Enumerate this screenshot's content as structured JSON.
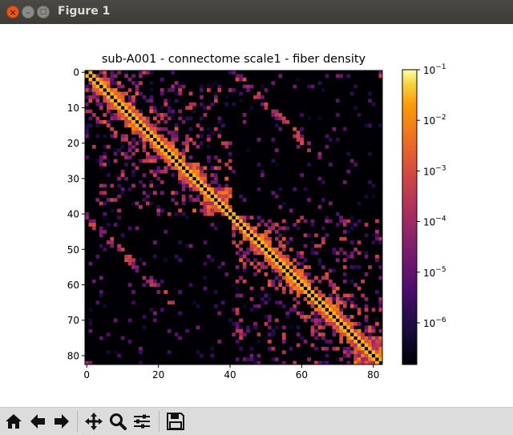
{
  "window": {
    "title": "Figure 1",
    "close_glyph": "×",
    "min_glyph": "–",
    "max_glyph": "□"
  },
  "toolbar": {
    "buttons": [
      {
        "name": "home-button",
        "icon": "home-icon"
      },
      {
        "name": "back-button",
        "icon": "arrow-left-icon"
      },
      {
        "name": "forward-button",
        "icon": "arrow-right-icon"
      },
      {
        "name": "pan-button",
        "icon": "move-icon"
      },
      {
        "name": "zoom-button",
        "icon": "zoom-icon"
      },
      {
        "name": "configure-subplots-button",
        "icon": "sliders-icon"
      },
      {
        "name": "save-button",
        "icon": "save-icon"
      }
    ]
  },
  "chart_data": {
    "type": "heatmap",
    "title": "sub-A001 - connectome scale1 - fiber density",
    "n": 83,
    "x_ticks": [
      0,
      20,
      40,
      60,
      80
    ],
    "y_ticks": [
      0,
      10,
      20,
      30,
      40,
      50,
      60,
      70,
      80
    ],
    "colorbar": {
      "scale": "log",
      "colormap": "inferno",
      "vmin": 1.5e-07,
      "vmax": 0.1,
      "ticks": [
        {
          "base": "10",
          "exp": "−1",
          "value": 0.1
        },
        {
          "base": "10",
          "exp": "−2",
          "value": 0.01
        },
        {
          "base": "10",
          "exp": "−3",
          "value": 0.001
        },
        {
          "base": "10",
          "exp": "−4",
          "value": 0.0001
        },
        {
          "base": "10",
          "exp": "−5",
          "value": 1e-05
        },
        {
          "base": "10",
          "exp": "−6",
          "value": 1e-06
        }
      ]
    },
    "structure": {
      "hemisphere_blocks": [
        [
          0,
          40
        ],
        [
          41,
          82
        ]
      ],
      "dense_sub_blocks": [
        [
          0,
          3
        ],
        [
          33,
          40
        ],
        [
          41,
          44
        ],
        [
          75,
          82
        ]
      ],
      "diagonal_value": 0.03,
      "zero_value": 0
    }
  }
}
